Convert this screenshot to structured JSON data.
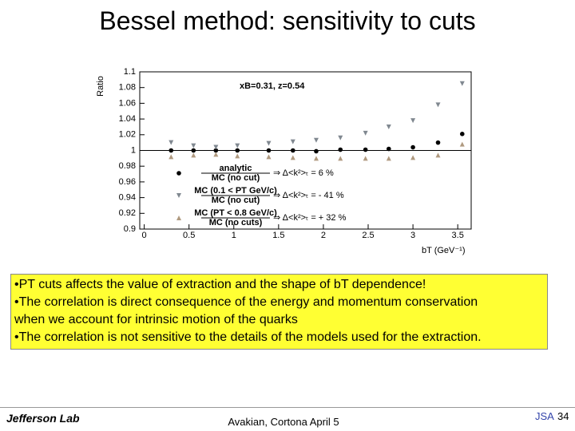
{
  "header": {
    "title": "Bessel method: sensitivity to cuts"
  },
  "chart_data": {
    "type": "scatter",
    "title": "xB=0.31, z=0.54",
    "y_label": "Ratio",
    "x_label": "bT (GeV⁻¹)",
    "x": [
      0.3,
      0.55,
      0.8,
      1.04,
      1.39,
      1.66,
      1.92,
      2.19,
      2.47,
      2.73,
      3.0,
      3.28,
      3.55
    ],
    "xlim": [
      -0.05,
      3.65
    ],
    "xticks": [
      0,
      0.5,
      1,
      1.5,
      2,
      2.5,
      3,
      3.5
    ],
    "ylim": [
      0.9,
      1.1
    ],
    "yticks": [
      0.9,
      0.92,
      0.94,
      0.96,
      0.98,
      1,
      1.02,
      1.04,
      1.06,
      1.08,
      1.1
    ],
    "reference_line": 1,
    "series": [
      {
        "name": "analytic",
        "denominator": "MC (no cut)",
        "note": "⇒ Δ<k²>ₜ = 6 %",
        "color": "#000000",
        "marker": "circle",
        "values": [
          1.0,
          1.0,
          1.0,
          1.0,
          1.0,
          1.0,
          0.999,
          1.001,
          1.001,
          1.002,
          1.004,
          1.01,
          1.021
        ]
      },
      {
        "name": "MC (0.1 < PT GeV/c)",
        "denominator": "MC (no cut)",
        "note": "⇒ Δ<k²>ₜ = - 41 %",
        "color": "#808890",
        "marker": "triangle-down",
        "values": [
          1.01,
          1.006,
          1.004,
          1.006,
          1.009,
          1.011,
          1.013,
          1.016,
          1.022,
          1.03,
          1.038,
          1.058,
          1.085
        ]
      },
      {
        "name": "MC (PT < 0.8 GeV/c)",
        "denominator": "MC (no cuts)",
        "note": "⇒ Δ<k²>ₜ = + 32 %",
        "color": "#b09a80",
        "marker": "triangle-up",
        "values": [
          0.992,
          0.994,
          0.995,
          0.993,
          0.992,
          0.991,
          0.99,
          0.99,
          0.99,
          0.99,
          0.991,
          0.994,
          1.008
        ]
      }
    ]
  },
  "textbox": {
    "lines": [
      "•PT cuts affects  the value of extraction and the shape of bT dependence!",
      "•The correlation is direct consequence of the energy and momentum conservation",
      "when we account for intrinsic motion of the quarks",
      "•The correlation is not sensitive to the details of the models used for the extraction."
    ]
  },
  "footer": {
    "logo": "Jefferson Lab",
    "center": "Avakian, Cortona  April 5",
    "org": "JSA",
    "page": "34"
  }
}
